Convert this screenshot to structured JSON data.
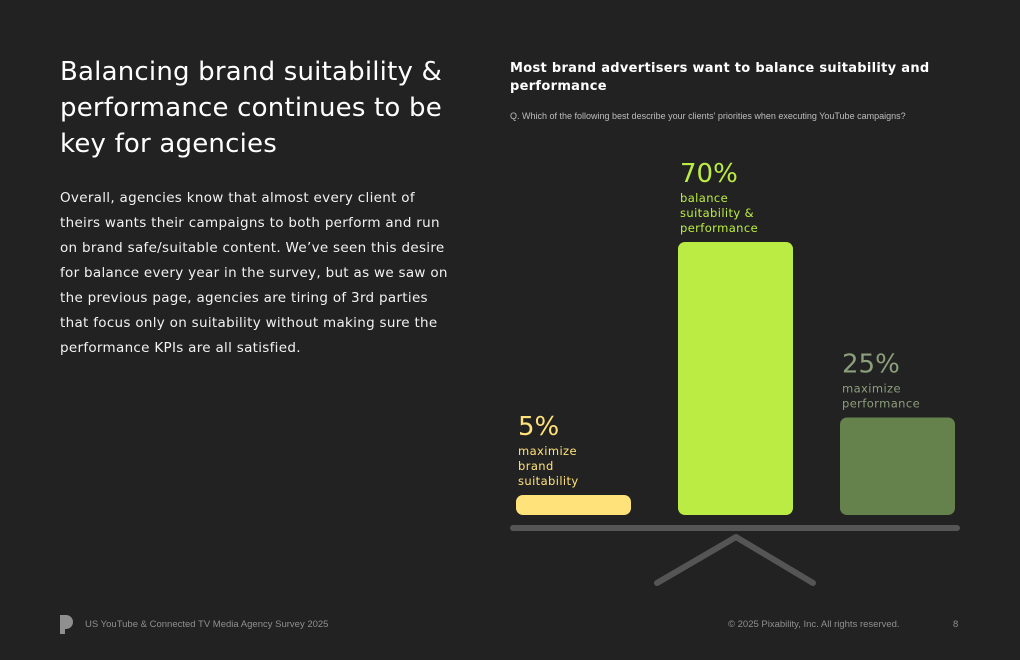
{
  "page": {
    "headline": "Balancing brand suitability & performance continues to be key for agencies",
    "body": "Overall, agencies know that almost every client of theirs wants their campaigns to both perform and run on brand safe/suitable content. We’ve seen this desire for balance every year in the survey, but as we saw on the previous page, agencies are tiring of 3rd parties that focus only on suitability without making sure the performance KPIs are all satisfied."
  },
  "chart_data": {
    "type": "bar",
    "title": "Most brand advertisers want to balance suitability and performance",
    "question": "Q. Which of the following best describe your clients' priorities when executing YouTube campaigns?",
    "categories": [
      "maximize brand suitability",
      "balance suitability & performance",
      "maximize performance"
    ],
    "values": [
      5,
      70,
      25
    ],
    "value_labels": [
      "5%",
      "70%",
      "25%"
    ],
    "label_lines": [
      [
        "maximize",
        "brand",
        "suitability"
      ],
      [
        "balance",
        "suitability &",
        "performance"
      ],
      [
        "maximize",
        "performance"
      ]
    ],
    "colors": [
      "#ffe27a",
      "#bbec44",
      "#65814c"
    ],
    "label_colors": [
      "#ffe27a",
      "#bbec44",
      "#8c9f7b"
    ],
    "unit": "%",
    "ylim": [
      0,
      70
    ],
    "xlabel": "",
    "ylabel": "",
    "grid": false,
    "legend": "none",
    "decoration": "balance-scale"
  },
  "footer": {
    "left": "US YouTube & Connected TV Media Agency Survey 2025",
    "right": "© 2025 Pixability, Inc. All rights reserved.",
    "page_number": "8",
    "logo_icon": "pixability-logo-icon"
  }
}
